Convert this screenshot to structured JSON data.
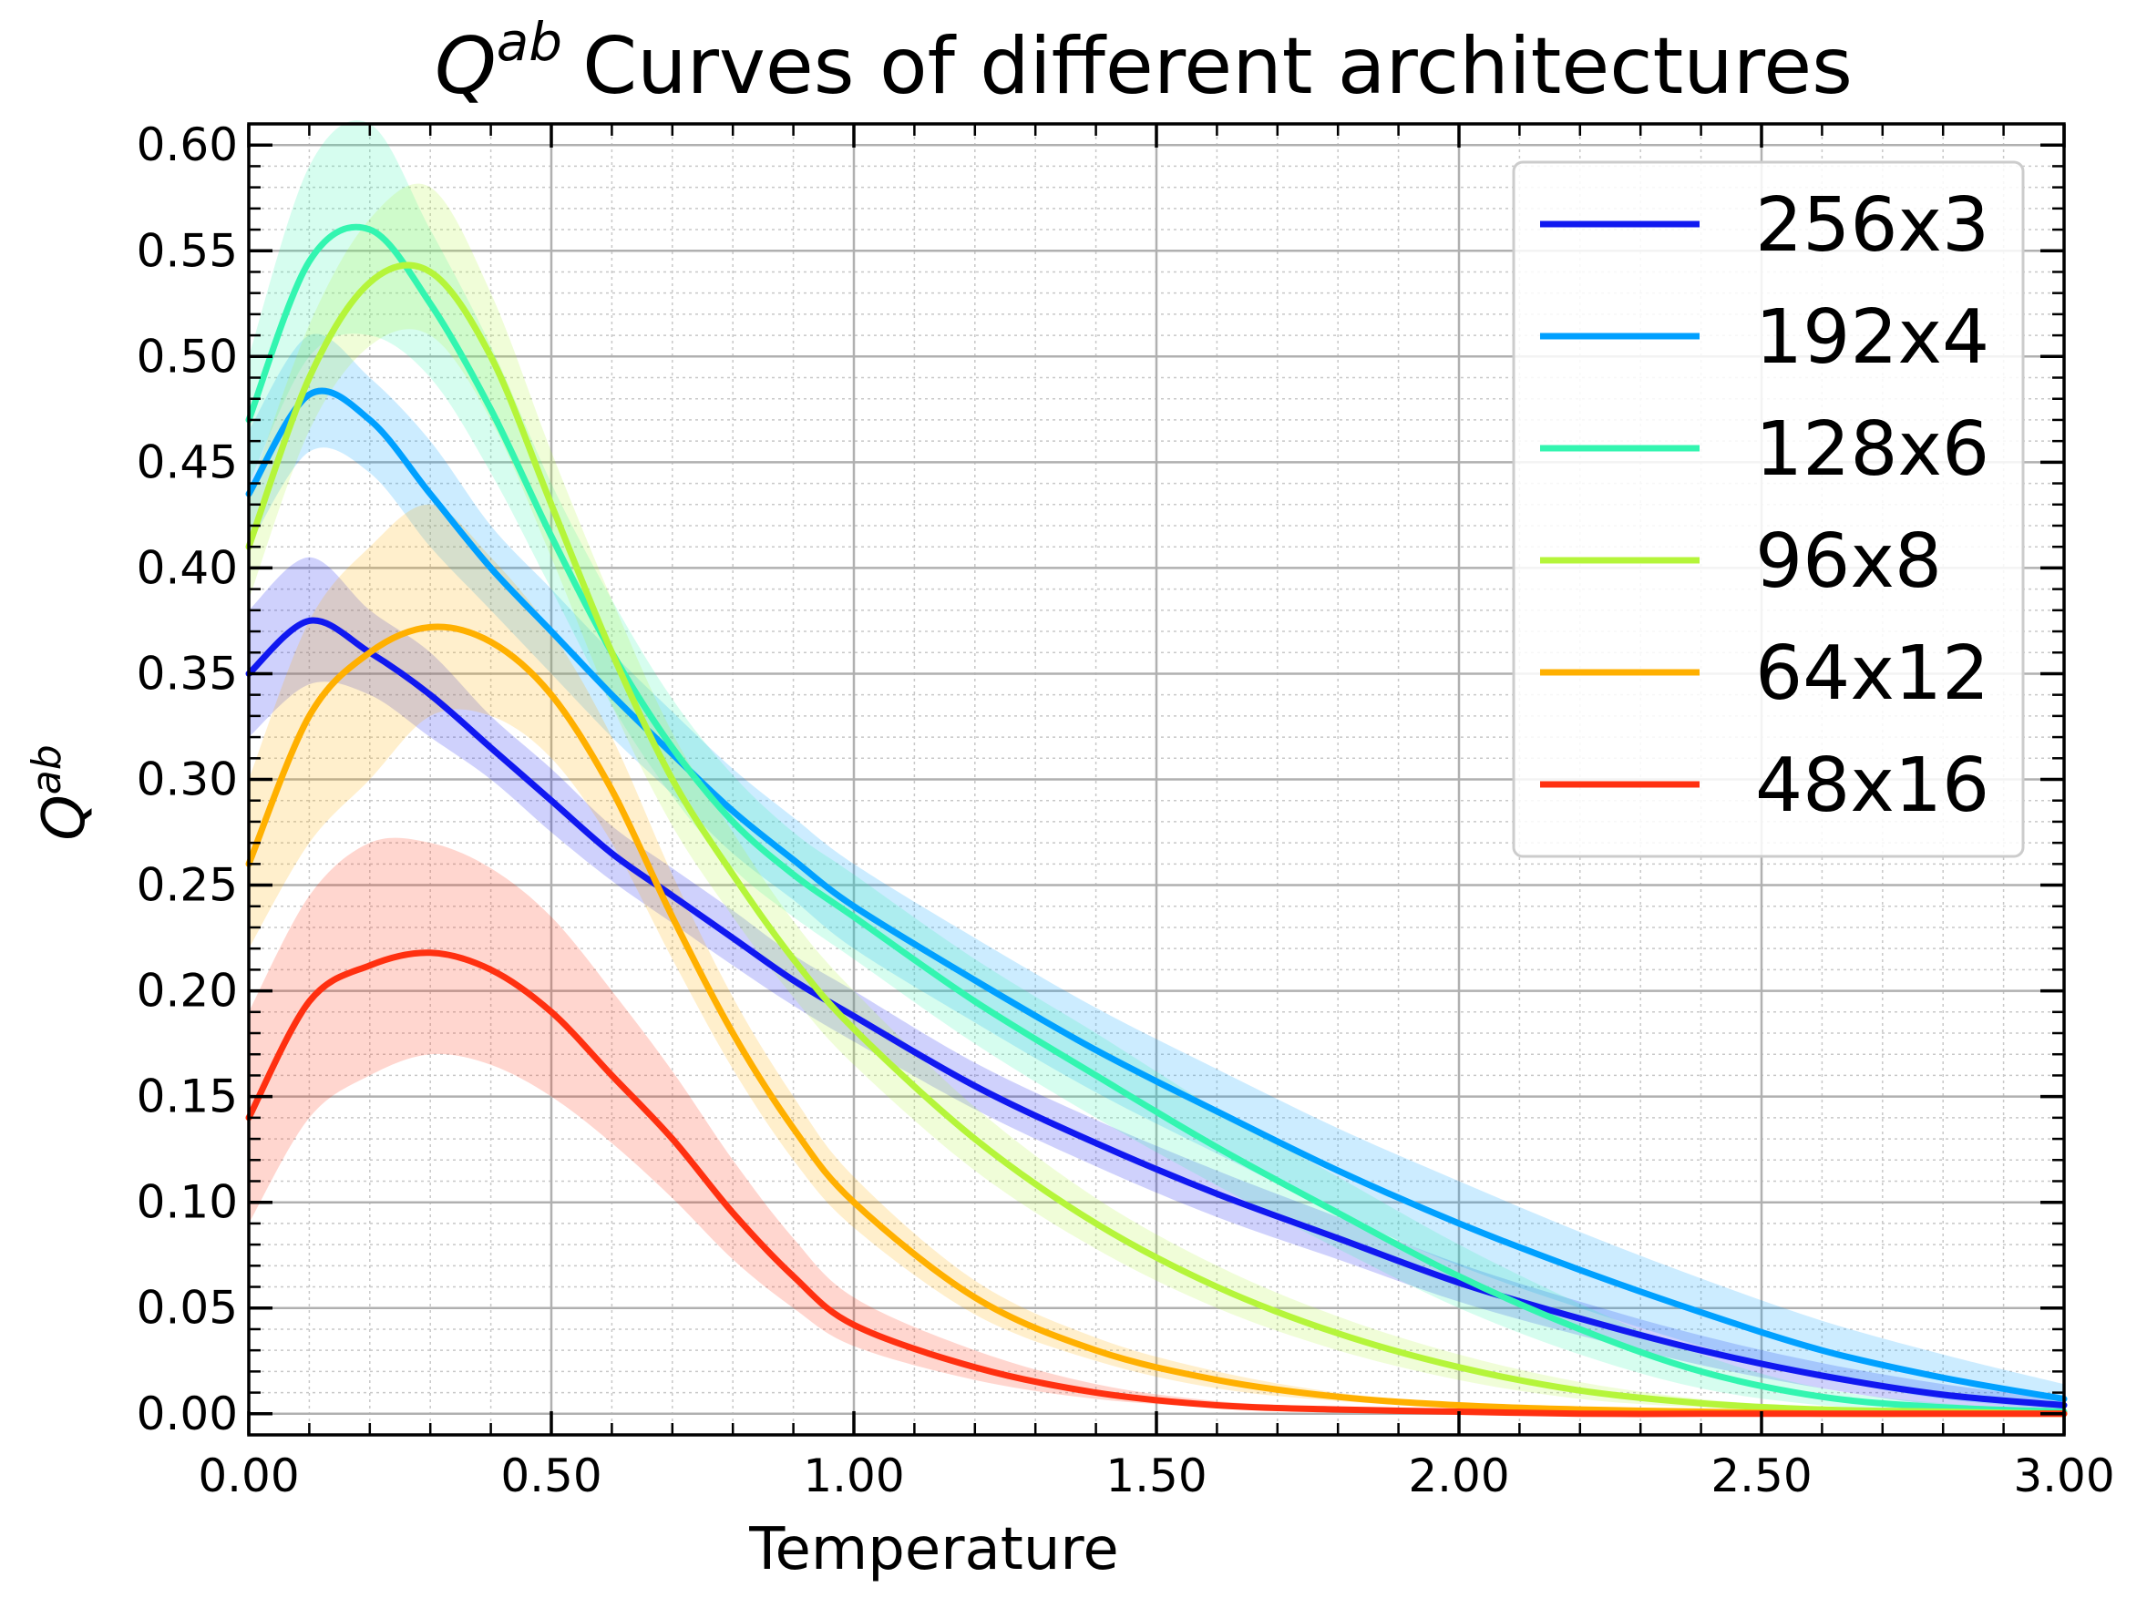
{
  "chart_data": {
    "type": "line",
    "title": "Curves of different architectures",
    "title_symbol": "Q",
    "title_superscript": "ab",
    "xlabel": "Temperature",
    "ylabel_symbol": "Q",
    "ylabel_superscript": "ab",
    "xlim": [
      0.0,
      3.0
    ],
    "ylim": [
      -0.01,
      0.61
    ],
    "x_ticks": [
      "0.00",
      "0.50",
      "1.00",
      "1.50",
      "2.00",
      "2.50",
      "3.00"
    ],
    "y_ticks": [
      "0.00",
      "0.05",
      "0.10",
      "0.15",
      "0.20",
      "0.25",
      "0.30",
      "0.35",
      "0.40",
      "0.45",
      "0.50",
      "0.55",
      "0.60"
    ],
    "grid": true,
    "minor_grid": true,
    "legend_position": "upper-right",
    "x": [
      0.0,
      0.1,
      0.2,
      0.3,
      0.4,
      0.5,
      0.6,
      0.7,
      0.8,
      0.9,
      1.0,
      1.2,
      1.4,
      1.6,
      1.8,
      2.0,
      2.2,
      2.4,
      2.6,
      2.8,
      3.0
    ],
    "series": [
      {
        "name": "256x3",
        "color": "#1018f0",
        "values": [
          0.35,
          0.375,
          0.36,
          0.34,
          0.315,
          0.29,
          0.265,
          0.245,
          0.225,
          0.205,
          0.188,
          0.155,
          0.128,
          0.104,
          0.083,
          0.062,
          0.045,
          0.03,
          0.018,
          0.009,
          0.004
        ],
        "lower": [
          0.32,
          0.345,
          0.34,
          0.32,
          0.3,
          0.275,
          0.252,
          0.232,
          0.212,
          0.193,
          0.176,
          0.144,
          0.117,
          0.093,
          0.073,
          0.053,
          0.037,
          0.023,
          0.012,
          0.004,
          0.001
        ],
        "upper": [
          0.38,
          0.405,
          0.38,
          0.36,
          0.33,
          0.305,
          0.278,
          0.258,
          0.238,
          0.217,
          0.2,
          0.166,
          0.139,
          0.115,
          0.093,
          0.071,
          0.053,
          0.037,
          0.024,
          0.014,
          0.007
        ]
      },
      {
        "name": "192x4",
        "color": "#00a0ff",
        "values": [
          0.435,
          0.482,
          0.47,
          0.435,
          0.4,
          0.37,
          0.34,
          0.312,
          0.285,
          0.262,
          0.24,
          0.205,
          0.172,
          0.143,
          0.115,
          0.09,
          0.068,
          0.048,
          0.03,
          0.017,
          0.007
        ],
        "lower": [
          0.41,
          0.455,
          0.445,
          0.41,
          0.38,
          0.35,
          0.32,
          0.293,
          0.265,
          0.243,
          0.22,
          0.185,
          0.152,
          0.123,
          0.095,
          0.07,
          0.05,
          0.032,
          0.017,
          0.007,
          0.002
        ],
        "upper": [
          0.465,
          0.51,
          0.49,
          0.46,
          0.42,
          0.39,
          0.36,
          0.332,
          0.305,
          0.282,
          0.26,
          0.225,
          0.192,
          0.163,
          0.135,
          0.11,
          0.086,
          0.064,
          0.044,
          0.028,
          0.014
        ]
      },
      {
        "name": "128x6",
        "color": "#33f5b0",
        "values": [
          0.47,
          0.545,
          0.56,
          0.525,
          0.475,
          0.415,
          0.36,
          0.315,
          0.28,
          0.255,
          0.235,
          0.195,
          0.16,
          0.126,
          0.095,
          0.065,
          0.04,
          0.02,
          0.008,
          0.003,
          0.001
        ],
        "lower": [
          0.44,
          0.5,
          0.51,
          0.49,
          0.445,
          0.39,
          0.335,
          0.292,
          0.258,
          0.235,
          0.215,
          0.175,
          0.14,
          0.108,
          0.078,
          0.05,
          0.028,
          0.012,
          0.004,
          0.001,
          0.0
        ],
        "upper": [
          0.5,
          0.59,
          0.61,
          0.56,
          0.505,
          0.44,
          0.385,
          0.338,
          0.302,
          0.275,
          0.255,
          0.215,
          0.18,
          0.144,
          0.112,
          0.08,
          0.052,
          0.028,
          0.012,
          0.005,
          0.002
        ]
      },
      {
        "name": "96x8",
        "color": "#b5f53a",
        "values": [
          0.41,
          0.49,
          0.535,
          0.54,
          0.5,
          0.43,
          0.36,
          0.3,
          0.255,
          0.215,
          0.182,
          0.13,
          0.09,
          0.06,
          0.038,
          0.022,
          0.011,
          0.005,
          0.002,
          0.001,
          0.0
        ],
        "lower": [
          0.385,
          0.465,
          0.505,
          0.51,
          0.47,
          0.405,
          0.335,
          0.278,
          0.235,
          0.197,
          0.165,
          0.115,
          0.078,
          0.05,
          0.03,
          0.016,
          0.007,
          0.003,
          0.001,
          0.0,
          0.0
        ],
        "upper": [
          0.435,
          0.515,
          0.565,
          0.58,
          0.53,
          0.455,
          0.385,
          0.322,
          0.275,
          0.233,
          0.2,
          0.145,
          0.102,
          0.07,
          0.046,
          0.028,
          0.015,
          0.007,
          0.003,
          0.001,
          0.0
        ]
      },
      {
        "name": "64x12",
        "color": "#ffb000",
        "values": [
          0.26,
          0.33,
          0.36,
          0.372,
          0.365,
          0.34,
          0.295,
          0.235,
          0.18,
          0.135,
          0.1,
          0.055,
          0.03,
          0.016,
          0.008,
          0.004,
          0.002,
          0.001,
          0.0,
          0.0,
          0.0
        ],
        "lower": [
          0.22,
          0.27,
          0.3,
          0.33,
          0.33,
          0.31,
          0.27,
          0.215,
          0.163,
          0.12,
          0.088,
          0.047,
          0.025,
          0.012,
          0.006,
          0.003,
          0.001,
          0.0,
          0.0,
          0.0,
          0.0
        ],
        "upper": [
          0.3,
          0.375,
          0.41,
          0.43,
          0.405,
          0.37,
          0.32,
          0.255,
          0.197,
          0.15,
          0.112,
          0.063,
          0.036,
          0.02,
          0.01,
          0.005,
          0.002,
          0.001,
          0.0,
          0.0,
          0.0
        ]
      },
      {
        "name": "48x16",
        "color": "#ff3010",
        "values": [
          0.14,
          0.195,
          0.212,
          0.218,
          0.21,
          0.19,
          0.16,
          0.13,
          0.095,
          0.065,
          0.042,
          0.022,
          0.01,
          0.004,
          0.002,
          0.001,
          0.0,
          0.0,
          0.0,
          0.0,
          0.0
        ],
        "lower": [
          0.09,
          0.14,
          0.16,
          0.17,
          0.165,
          0.15,
          0.128,
          0.102,
          0.073,
          0.05,
          0.032,
          0.016,
          0.007,
          0.003,
          0.001,
          0.0,
          0.0,
          0.0,
          0.0,
          0.0,
          0.0
        ],
        "upper": [
          0.19,
          0.245,
          0.27,
          0.27,
          0.258,
          0.235,
          0.2,
          0.162,
          0.12,
          0.083,
          0.055,
          0.03,
          0.014,
          0.006,
          0.003,
          0.001,
          0.0,
          0.0,
          0.0,
          0.0,
          0.0
        ]
      }
    ]
  }
}
